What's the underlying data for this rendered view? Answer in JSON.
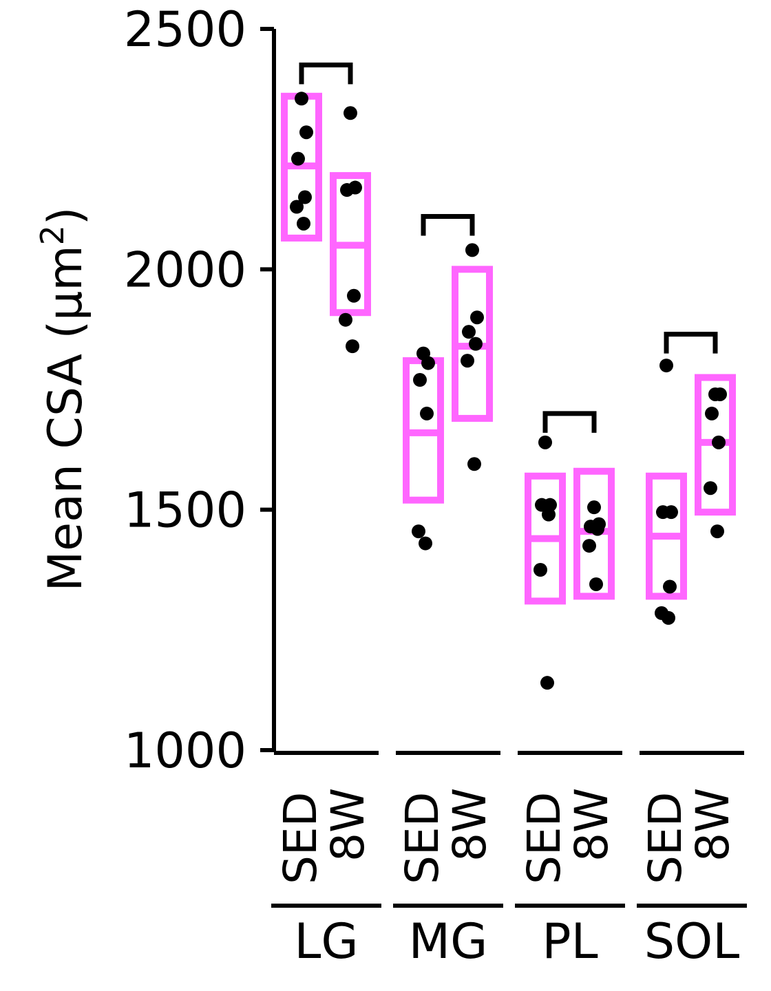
{
  "chart_data": {
    "type": "box",
    "ylabel": "Mean CSA (μm²)",
    "ylabel_main": "Mean CSA (",
    "ylabel_unit": "μm",
    "ylabel_sup": "2",
    "ylabel_close": ")",
    "ylim": [
      1000,
      2500
    ],
    "yticks": [
      "1000",
      "1500",
      "2000",
      "2500"
    ],
    "ytick_values": [
      1000,
      1500,
      2000,
      2500
    ],
    "groups": [
      {
        "name": "LG",
        "conditions": [
          {
            "name": "SED",
            "box": {
              "low": 2065,
              "mid": 2215,
              "high": 2360
            },
            "points": [
              2355,
              2285,
              2230,
              2150,
              2130,
              2095
            ]
          },
          {
            "name": "8W",
            "box": {
              "low": 1910,
              "mid": 2050,
              "high": 2195
            },
            "points": [
              2325,
              2170,
              2165,
              1945,
              1895,
              1840
            ]
          }
        ]
      },
      {
        "name": "MG",
        "conditions": [
          {
            "name": "SED",
            "box": {
              "low": 1520,
              "mid": 1660,
              "high": 1810
            },
            "points": [
              1825,
              1805,
              1770,
              1700,
              1455,
              1430
            ]
          },
          {
            "name": "8W",
            "box": {
              "low": 1690,
              "mid": 1840,
              "high": 2000
            },
            "points": [
              2040,
              1900,
              1870,
              1845,
              1810,
              1595
            ]
          }
        ]
      },
      {
        "name": "PL",
        "conditions": [
          {
            "name": "SED",
            "box": {
              "low": 1310,
              "mid": 1440,
              "high": 1570
            },
            "points": [
              1640,
              1510,
              1510,
              1490,
              1375,
              1140
            ]
          },
          {
            "name": "8W",
            "box": {
              "low": 1320,
              "mid": 1455,
              "high": 1580
            },
            "points": [
              1505,
              1470,
              1465,
              1460,
              1425,
              1345
            ]
          }
        ]
      },
      {
        "name": "SOL",
        "conditions": [
          {
            "name": "SED",
            "box": {
              "low": 1320,
              "mid": 1445,
              "high": 1570
            },
            "points": [
              1800,
              1495,
              1495,
              1340,
              1285,
              1275
            ]
          },
          {
            "name": "8W",
            "box": {
              "low": 1495,
              "mid": 1640,
              "high": 1775
            },
            "points": [
              1740,
              1740,
              1700,
              1640,
              1545,
              1455
            ]
          }
        ]
      }
    ],
    "brackets": [
      {
        "group": "LG",
        "y": 2425
      },
      {
        "group": "MG",
        "y": 2110
      },
      {
        "group": "PL",
        "y": 1700
      },
      {
        "group": "SOL",
        "y": 1865
      }
    ],
    "colors": {
      "box": "#ff66ff",
      "point": "#000000",
      "axis": "#000000"
    }
  }
}
